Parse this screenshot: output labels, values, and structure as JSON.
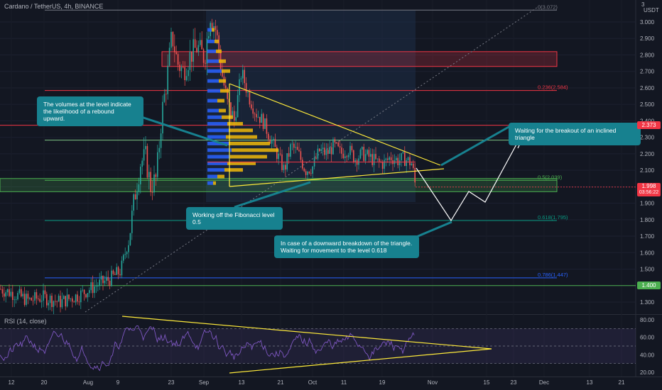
{
  "header": {
    "symbol": "Cardano / TetherUS, 4h, BINANCE"
  },
  "currency": "USDT",
  "rsi": {
    "label": "RSI (14, close)",
    "ticks": [
      80,
      60,
      40,
      20
    ],
    "upper": 70,
    "lower": 30
  },
  "price_tags": [
    {
      "label": "2.373",
      "price": 2.373,
      "color": "#f23645"
    },
    {
      "label": "1.998",
      "sub": "03:56:22",
      "price": 1.998,
      "color": "#f23645"
    },
    {
      "label": "1.400",
      "price": 1.4,
      "color": "#4caf50"
    }
  ],
  "annotations": [
    "The volumes at the level indicate\nthe likelihood of a rebound upward.",
    "Waiting for the breakout of an inclined triangle",
    "Working off the Fibonacci level 0.5",
    "In case of a downward breakdown of the triangle.\nWaiting for movement to the level 0.618"
  ],
  "colors": {
    "background": "#131722",
    "up": "#26a69a",
    "down": "#ef5350",
    "rsi_line": "#7e57c2",
    "triangle": "#ffeb3b",
    "volume_profile_blue": "#2962ff",
    "volume_profile_yellow": "#f0b90b"
  },
  "chart_data": {
    "type": "candlestick",
    "price_axis": {
      "ticks": [
        3.0,
        2.9,
        2.8,
        2.7,
        2.6,
        2.5,
        2.4,
        2.3,
        2.2,
        2.1,
        2.0,
        1.9,
        1.8,
        1.7,
        1.6,
        1.5,
        1.4,
        1.3
      ]
    },
    "time_axis": {
      "labels": [
        "12",
        "20",
        "Aug",
        "9",
        "23",
        "Sep",
        "13",
        "21",
        "Oct",
        "11",
        "19",
        "Nov",
        "15",
        "23",
        "Dec",
        "13",
        "21"
      ]
    },
    "fibonacci": [
      {
        "label": "0(3.072)",
        "price": 3.072,
        "color": "#787b86"
      },
      {
        "label": "0.236(2.584)",
        "price": 2.584,
        "color": "#f23645"
      },
      {
        "label": "0.382(2.283)",
        "price": 2.283,
        "color": "#81c784"
      },
      {
        "label": "0.5(2.039)",
        "price": 2.039,
        "color": "#4caf50"
      },
      {
        "label": "0.618(1.795)",
        "price": 1.795,
        "color": "#089981"
      },
      {
        "label": "0.786(1.447)",
        "price": 1.447,
        "color": "#2962ff"
      }
    ],
    "levels": [
      {
        "price": 2.373,
        "color": "#f23645"
      },
      {
        "price": 1.4,
        "color": "#4caf50"
      }
    ],
    "zones": [
      {
        "from": 2.73,
        "to": 2.82,
        "color": "#f23645"
      },
      {
        "from": 1.97,
        "to": 2.05,
        "color": "#4caf50"
      }
    ]
  }
}
